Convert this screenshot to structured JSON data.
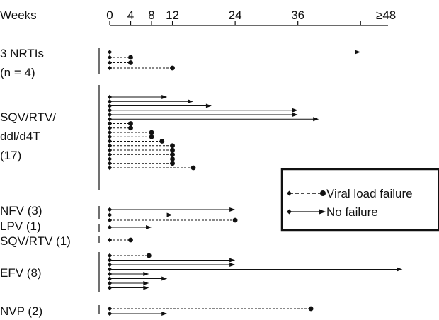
{
  "chart_data": {
    "type": "timeline",
    "axis": {
      "title": "Weeks",
      "ticks": [
        0,
        4,
        8,
        12,
        24,
        36
      ],
      "tick_labels": [
        "0",
        "4",
        "8",
        "12",
        "24",
        "36"
      ],
      "end_label": "≥48",
      "range": [
        0,
        48
      ]
    },
    "legend": {
      "placement": "right",
      "items": [
        {
          "label": "Viral load failure",
          "style": "dashed"
        },
        {
          "label": "No failure",
          "style": "solid"
        }
      ]
    },
    "groups": [
      {
        "labels": [
          "3 NRTIs",
          "(n = 4)"
        ],
        "patients": [
          {
            "end": 48,
            "status": "no_failure"
          },
          {
            "end": 4,
            "status": "viral_load_failure"
          },
          {
            "end": 4,
            "status": "viral_load_failure"
          },
          {
            "end": 12,
            "status": "viral_load_failure"
          }
        ]
      },
      {
        "labels": [
          "SQV/RTV/",
          "ddl/d4T",
          "(17)"
        ],
        "patients": [
          {
            "end": 11,
            "status": "no_failure"
          },
          {
            "end": 16,
            "status": "no_failure"
          },
          {
            "end": 19.5,
            "status": "no_failure"
          },
          {
            "end": 36,
            "status": "no_failure"
          },
          {
            "end": 36,
            "status": "no_failure"
          },
          {
            "end": 40,
            "status": "no_failure"
          },
          {
            "end": 4,
            "status": "viral_load_failure"
          },
          {
            "end": 4,
            "status": "viral_load_failure"
          },
          {
            "end": 8,
            "status": "viral_load_failure"
          },
          {
            "end": 8,
            "status": "viral_load_failure"
          },
          {
            "end": 10,
            "status": "viral_load_failure"
          },
          {
            "end": 12,
            "status": "viral_load_failure"
          },
          {
            "end": 12,
            "status": "viral_load_failure"
          },
          {
            "end": 12,
            "status": "viral_load_failure"
          },
          {
            "end": 12,
            "status": "viral_load_failure"
          },
          {
            "end": 12,
            "status": "viral_load_failure"
          },
          {
            "end": 16,
            "status": "viral_load_failure"
          }
        ]
      },
      {
        "labels": [
          "NFV (3)"
        ],
        "patients": [
          {
            "end": 24,
            "status": "no_failure"
          },
          {
            "end": 12,
            "status": "no_failure_dashed"
          },
          {
            "end": 24,
            "status": "viral_load_failure"
          }
        ]
      },
      {
        "labels": [
          "LPV (1)"
        ],
        "patients": [
          {
            "end": 8,
            "status": "no_failure"
          }
        ]
      },
      {
        "labels": [
          "SQV/RTV (1)"
        ],
        "patients": [
          {
            "end": 4,
            "status": "viral_load_failure"
          }
        ]
      },
      {
        "labels": [
          "EFV (8)"
        ],
        "patients": [
          {
            "end": 7.5,
            "status": "viral_load_failure"
          },
          {
            "end": 24,
            "status": "no_failure"
          },
          {
            "end": 24,
            "status": "no_failure"
          },
          {
            "end": 56,
            "status": "no_failure"
          },
          {
            "end": 7.5,
            "status": "no_failure"
          },
          {
            "end": 11,
            "status": "no_failure"
          },
          {
            "end": 7.5,
            "status": "no_failure"
          },
          {
            "end": 7.5,
            "status": "no_failure"
          }
        ]
      },
      {
        "labels": [
          "NVP (2)"
        ],
        "patients": [
          {
            "end": 38.5,
            "status": "viral_load_failure"
          },
          {
            "end": 11,
            "status": "no_failure"
          }
        ]
      }
    ]
  }
}
